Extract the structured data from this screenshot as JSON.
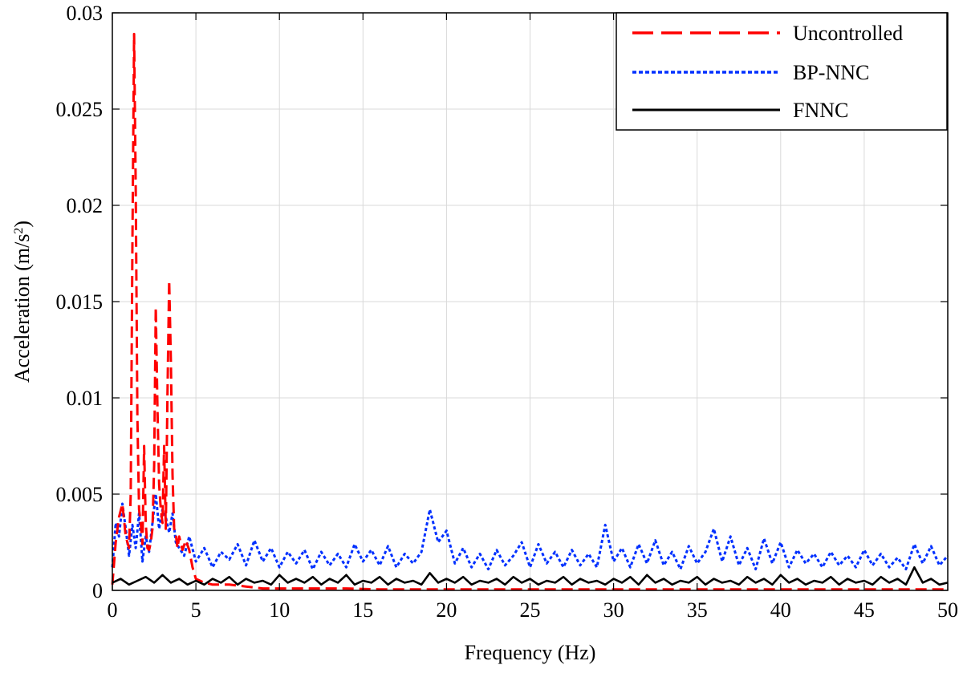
{
  "chart_data": {
    "type": "line",
    "xlabel": "Frequency (Hz)",
    "ylabel_main": "Acceleration (m/s",
    "ylabel_sup": "2",
    "ylabel_tail": ")",
    "xlim": [
      0,
      50
    ],
    "ylim": [
      0,
      0.03
    ],
    "x_ticks": [
      0,
      5,
      10,
      15,
      20,
      25,
      30,
      35,
      40,
      45,
      50
    ],
    "x_tick_labels": [
      "0",
      "5",
      "10",
      "15",
      "20",
      "25",
      "30",
      "35",
      "40",
      "45",
      "50"
    ],
    "y_ticks": [
      0,
      0.005,
      0.01,
      0.015,
      0.02,
      0.025,
      0.03
    ],
    "y_tick_labels": [
      "0",
      "0.005",
      "0.01",
      "0.015",
      "0.02",
      "0.025",
      "0.03"
    ],
    "grid": true,
    "legend_position": "top-right",
    "series": [
      {
        "name": "Uncontrolled",
        "color": "#ff0000",
        "style": "dashed",
        "x": [
          0,
          0.2,
          0.4,
          0.6,
          0.8,
          1.0,
          1.1,
          1.2,
          1.3,
          1.4,
          1.5,
          1.6,
          1.7,
          1.8,
          1.9,
          2.0,
          2.1,
          2.2,
          2.3,
          2.4,
          2.5,
          2.6,
          2.7,
          2.8,
          2.9,
          3.0,
          3.1,
          3.2,
          3.3,
          3.4,
          3.5,
          3.6,
          3.7,
          3.8,
          3.9,
          4.0,
          4.2,
          4.4,
          4.6,
          4.8,
          5.0,
          5.5,
          6,
          7,
          8,
          9,
          10,
          11,
          12,
          14,
          16,
          18,
          20,
          25,
          30,
          35,
          40,
          45,
          50
        ],
        "values": [
          0.0003,
          0.0025,
          0.0038,
          0.0045,
          0.0028,
          0.0022,
          0.005,
          0.018,
          0.0289,
          0.021,
          0.009,
          0.0042,
          0.0035,
          0.0024,
          0.0075,
          0.0035,
          0.0022,
          0.0021,
          0.0025,
          0.0032,
          0.0065,
          0.0147,
          0.0095,
          0.0055,
          0.0042,
          0.0035,
          0.0075,
          0.0032,
          0.0102,
          0.0161,
          0.012,
          0.006,
          0.0032,
          0.0029,
          0.0022,
          0.0028,
          0.0021,
          0.0026,
          0.0021,
          0.0012,
          0.0006,
          0.0004,
          0.0003,
          0.0003,
          0.0002,
          0.0001,
          0.0001,
          0.0001,
          0.0001,
          0.0001,
          5e-05,
          5e-05,
          5e-05,
          5e-05,
          5e-05,
          5e-05,
          5e-05,
          5e-05,
          5e-05
        ]
      },
      {
        "name": "BP-NNC",
        "color": "#0030ff",
        "style": "dotted",
        "x": [
          0,
          0.2,
          0.4,
          0.6,
          0.8,
          1.0,
          1.2,
          1.4,
          1.6,
          1.8,
          2.0,
          2.2,
          2.4,
          2.6,
          2.8,
          3.0,
          3.2,
          3.4,
          3.6,
          3.8,
          4.0,
          4.3,
          4.6,
          5.0,
          5.5,
          6.0,
          6.5,
          7.0,
          7.5,
          8.0,
          8.5,
          9.0,
          9.5,
          10.0,
          10.5,
          11.0,
          11.5,
          12.0,
          12.5,
          13.0,
          13.5,
          14.0,
          14.5,
          15.0,
          15.5,
          16.0,
          16.5,
          17.0,
          17.5,
          18.0,
          18.5,
          19.0,
          19.5,
          20.0,
          20.5,
          21.0,
          21.5,
          22.0,
          22.5,
          23.0,
          23.5,
          24.0,
          24.5,
          25.0,
          25.5,
          26.0,
          26.5,
          27.0,
          27.5,
          28.0,
          28.5,
          29.0,
          29.5,
          30.0,
          30.5,
          31.0,
          31.5,
          32.0,
          32.5,
          33.0,
          33.5,
          34.0,
          34.5,
          35.0,
          35.5,
          36.0,
          36.5,
          37.0,
          37.5,
          38.0,
          38.5,
          39.0,
          39.5,
          40.0,
          40.5,
          41.0,
          41.5,
          42.0,
          42.5,
          43.0,
          43.5,
          44.0,
          44.5,
          45.0,
          45.5,
          46.0,
          46.5,
          47.0,
          47.5,
          48.0,
          48.5,
          49.0,
          49.5,
          50.0
        ],
        "values": [
          0.0012,
          0.0035,
          0.0028,
          0.0045,
          0.0032,
          0.0018,
          0.0034,
          0.0022,
          0.004,
          0.0015,
          0.0028,
          0.002,
          0.0035,
          0.005,
          0.0032,
          0.0042,
          0.0038,
          0.003,
          0.004,
          0.0025,
          0.0022,
          0.0018,
          0.0028,
          0.0015,
          0.0022,
          0.0012,
          0.002,
          0.0016,
          0.0024,
          0.0013,
          0.0026,
          0.0015,
          0.0022,
          0.0012,
          0.002,
          0.0014,
          0.0021,
          0.0011,
          0.002,
          0.0013,
          0.0019,
          0.0012,
          0.0024,
          0.0015,
          0.0021,
          0.0013,
          0.0023,
          0.0012,
          0.0019,
          0.0014,
          0.002,
          0.0042,
          0.0025,
          0.0031,
          0.0014,
          0.0022,
          0.0012,
          0.0019,
          0.0011,
          0.0021,
          0.0013,
          0.0018,
          0.0025,
          0.0012,
          0.0024,
          0.0014,
          0.002,
          0.0012,
          0.0021,
          0.0013,
          0.0019,
          0.0012,
          0.0034,
          0.0015,
          0.0022,
          0.0012,
          0.0024,
          0.0014,
          0.0026,
          0.0013,
          0.002,
          0.0011,
          0.0023,
          0.0014,
          0.002,
          0.0032,
          0.0015,
          0.0028,
          0.0013,
          0.0022,
          0.0011,
          0.0027,
          0.0014,
          0.0025,
          0.0012,
          0.0021,
          0.0014,
          0.0019,
          0.0012,
          0.002,
          0.0013,
          0.0018,
          0.0012,
          0.0021,
          0.0013,
          0.0019,
          0.0012,
          0.0017,
          0.0011,
          0.0024,
          0.0014,
          0.0023,
          0.0013,
          0.0018
        ]
      },
      {
        "name": "FNNC",
        "color": "#000000",
        "style": "solid",
        "x": [
          0,
          0.5,
          1.0,
          1.5,
          2.0,
          2.5,
          3.0,
          3.5,
          4.0,
          4.5,
          5.0,
          5.5,
          6.0,
          6.5,
          7.0,
          7.5,
          8.0,
          8.5,
          9.0,
          9.5,
          10.0,
          10.5,
          11.0,
          11.5,
          12.0,
          12.5,
          13.0,
          13.5,
          14.0,
          14.5,
          15.0,
          15.5,
          16.0,
          16.5,
          17.0,
          17.5,
          18.0,
          18.5,
          19.0,
          19.5,
          20.0,
          20.5,
          21.0,
          21.5,
          22.0,
          22.5,
          23.0,
          23.5,
          24.0,
          24.5,
          25.0,
          25.5,
          26.0,
          26.5,
          27.0,
          27.5,
          28.0,
          28.5,
          29.0,
          29.5,
          30.0,
          30.5,
          31.0,
          31.5,
          32.0,
          32.5,
          33.0,
          33.5,
          34.0,
          34.5,
          35.0,
          35.5,
          36.0,
          36.5,
          37.0,
          37.5,
          38.0,
          38.5,
          39.0,
          39.5,
          40.0,
          40.5,
          41.0,
          41.5,
          42.0,
          42.5,
          43.0,
          43.5,
          44.0,
          44.5,
          45.0,
          45.5,
          46.0,
          46.5,
          47.0,
          47.5,
          48.0,
          48.5,
          49.0,
          49.5,
          50.0
        ],
        "values": [
          0.0004,
          0.0006,
          0.0003,
          0.0005,
          0.0007,
          0.0004,
          0.0008,
          0.0004,
          0.0006,
          0.0003,
          0.0005,
          0.0003,
          0.0006,
          0.0004,
          0.0007,
          0.0003,
          0.0006,
          0.0004,
          0.0005,
          0.0003,
          0.0008,
          0.0004,
          0.0006,
          0.0004,
          0.0007,
          0.0003,
          0.0006,
          0.0004,
          0.0008,
          0.0003,
          0.0005,
          0.0004,
          0.0007,
          0.0003,
          0.0006,
          0.0004,
          0.0005,
          0.0003,
          0.0009,
          0.0004,
          0.0006,
          0.0004,
          0.0007,
          0.0003,
          0.0005,
          0.0004,
          0.0006,
          0.0003,
          0.0007,
          0.0004,
          0.0006,
          0.0003,
          0.0005,
          0.0004,
          0.0007,
          0.0003,
          0.0006,
          0.0004,
          0.0005,
          0.0003,
          0.0006,
          0.0004,
          0.0007,
          0.0003,
          0.0008,
          0.0004,
          0.0006,
          0.0003,
          0.0005,
          0.0004,
          0.0007,
          0.0003,
          0.0006,
          0.0004,
          0.0005,
          0.0003,
          0.0007,
          0.0004,
          0.0006,
          0.0003,
          0.0008,
          0.0004,
          0.0006,
          0.0003,
          0.0005,
          0.0004,
          0.0007,
          0.0003,
          0.0006,
          0.0004,
          0.0005,
          0.0003,
          0.0007,
          0.0004,
          0.0006,
          0.0003,
          0.0012,
          0.0004,
          0.0006,
          0.0003,
          0.0004
        ]
      }
    ]
  }
}
